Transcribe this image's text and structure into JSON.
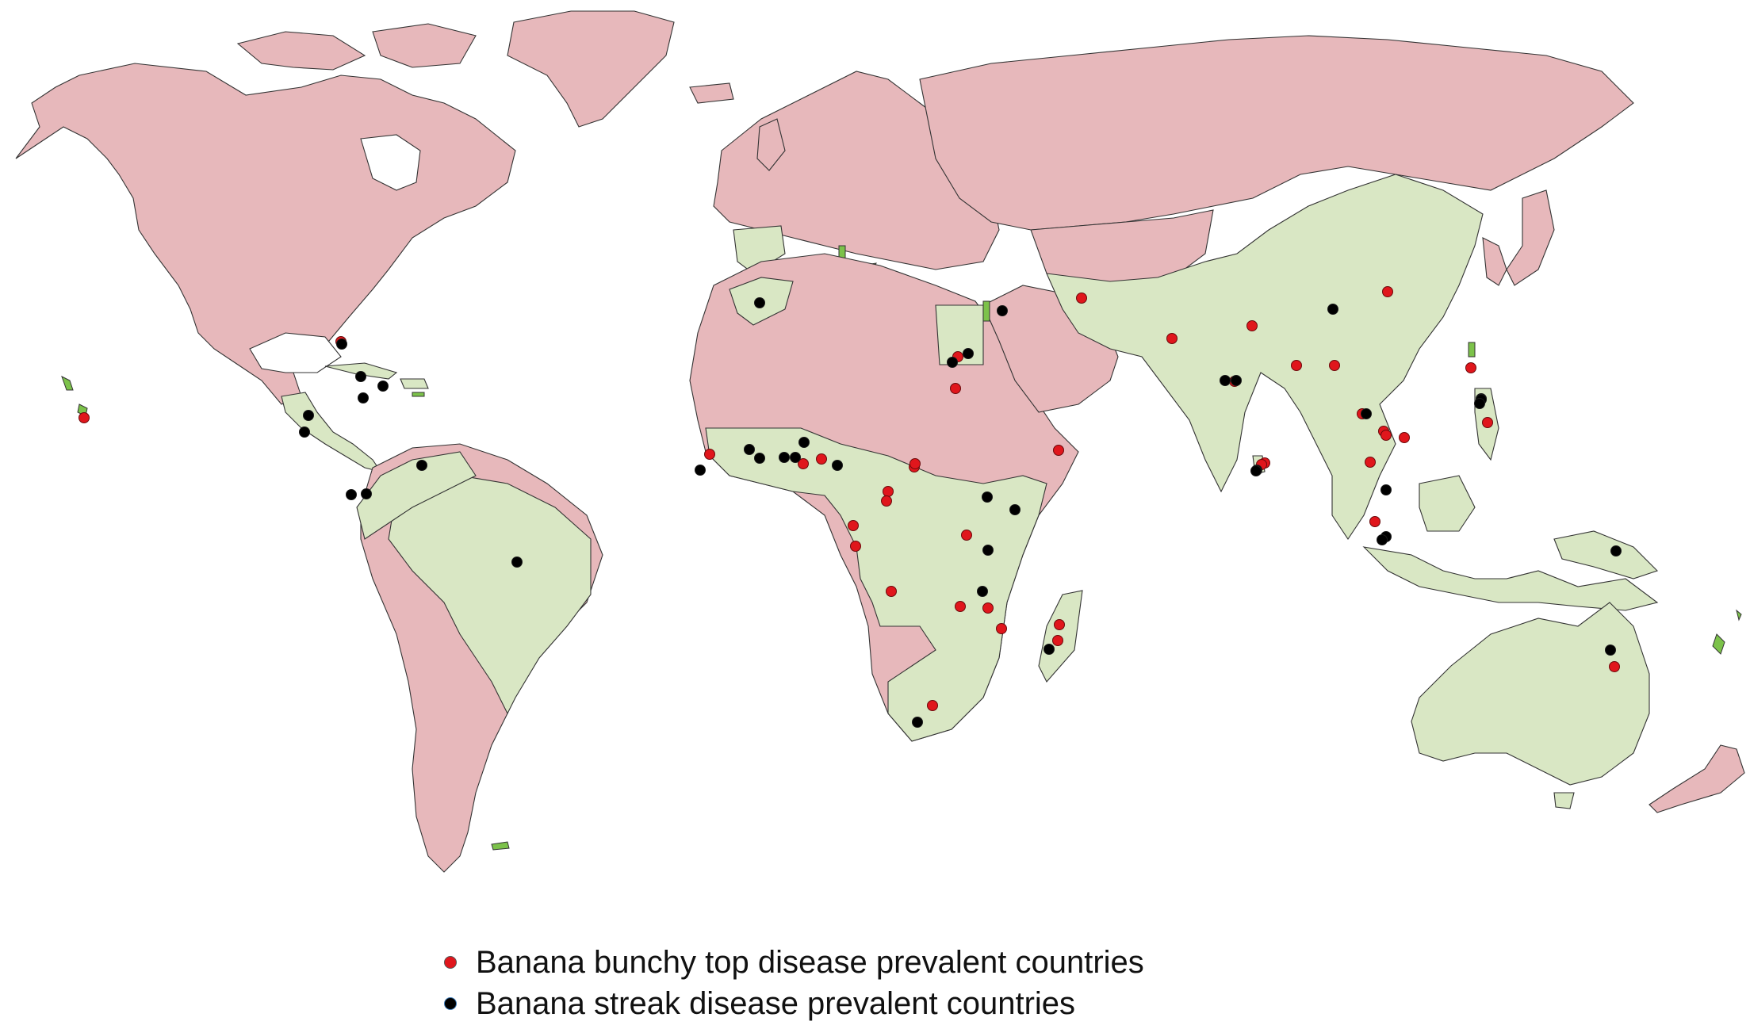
{
  "colors": {
    "disease_free_land": "#e7b8bb",
    "prevalent_land": "#d9e7c4",
    "small_prevalent_land": "#7cc24a",
    "banana_bunchy_top_marker": "#e0161c",
    "banana_streak_marker": "#000000"
  },
  "legend": [
    {
      "label": "Banana bunchy top disease prevalent countries",
      "color": "#e0161c"
    },
    {
      "label": "Banana streak disease prevalent countries",
      "color": "#000000"
    }
  ],
  "markers": {
    "bunchy_top": [
      [
        106,
        527
      ],
      [
        430,
        431
      ],
      [
        895,
        573
      ],
      [
        1013,
        585
      ],
      [
        1036,
        579
      ],
      [
        1153,
        589
      ],
      [
        1120,
        620
      ],
      [
        1076,
        663
      ],
      [
        1208,
        450
      ],
      [
        1205,
        490
      ],
      [
        1364,
        376
      ],
      [
        1478,
        427
      ],
      [
        1557,
        481
      ],
      [
        1579,
        411
      ],
      [
        1635,
        461
      ],
      [
        1683,
        461
      ],
      [
        1750,
        368
      ],
      [
        1745,
        544
      ],
      [
        1718,
        522
      ],
      [
        1748,
        549
      ],
      [
        1771,
        552
      ],
      [
        1728,
        583
      ],
      [
        1595,
        584
      ],
      [
        1876,
        533
      ],
      [
        1855,
        464
      ],
      [
        1335,
        568
      ],
      [
        1154,
        585
      ],
      [
        1219,
        675
      ],
      [
        1079,
        689
      ],
      [
        1118,
        632
      ],
      [
        1124,
        746
      ],
      [
        1211,
        765
      ],
      [
        1336,
        788
      ],
      [
        1334,
        808
      ],
      [
        1263,
        793
      ],
      [
        1246,
        767
      ],
      [
        1176,
        890
      ],
      [
        1591,
        586
      ],
      [
        1734,
        658
      ],
      [
        2036,
        841
      ]
    ],
    "banana_streak": [
      [
        1264,
        392
      ],
      [
        1221,
        446
      ],
      [
        1201,
        457
      ],
      [
        958,
        382
      ],
      [
        945,
        567
      ],
      [
        1545,
        480
      ],
      [
        1681,
        390
      ],
      [
        1723,
        522
      ],
      [
        1868,
        503
      ],
      [
        1748,
        618
      ],
      [
        1748,
        677
      ],
      [
        1585,
        593
      ],
      [
        1559,
        480
      ],
      [
        431,
        434
      ],
      [
        455,
        475
      ],
      [
        483,
        487
      ],
      [
        458,
        502
      ],
      [
        389,
        524
      ],
      [
        384,
        545
      ],
      [
        443,
        624
      ],
      [
        532,
        587
      ],
      [
        462,
        623
      ],
      [
        652,
        709
      ],
      [
        883,
        593
      ],
      [
        958,
        578
      ],
      [
        989,
        577
      ],
      [
        1014,
        558
      ],
      [
        1003,
        577
      ],
      [
        1056,
        587
      ],
      [
        1245,
        627
      ],
      [
        1280,
        643
      ],
      [
        1246,
        694
      ],
      [
        1239,
        746
      ],
      [
        1157,
        911
      ],
      [
        1323,
        819
      ],
      [
        1584,
        594
      ],
      [
        1743,
        681
      ],
      [
        1868,
        504
      ],
      [
        1866,
        509
      ],
      [
        2038,
        695
      ],
      [
        2031,
        820
      ]
    ]
  }
}
